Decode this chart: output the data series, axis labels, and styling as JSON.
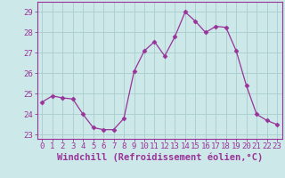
{
  "x": [
    0,
    1,
    2,
    3,
    4,
    5,
    6,
    7,
    8,
    9,
    10,
    11,
    12,
    13,
    14,
    15,
    16,
    17,
    18,
    19,
    20,
    21,
    22,
    23
  ],
  "y": [
    24.6,
    24.9,
    24.8,
    24.75,
    24.0,
    23.35,
    23.25,
    23.25,
    23.8,
    26.1,
    27.1,
    27.55,
    26.85,
    27.8,
    29.0,
    28.55,
    28.0,
    28.3,
    28.25,
    27.1,
    25.4,
    24.0,
    23.7,
    23.5
  ],
  "line_color": "#993399",
  "marker": "D",
  "marker_size": 2.5,
  "bg_color": "#cce8e8",
  "grid_color": "#aacccc",
  "xlabel": "Windchill (Refroidissement éolien,°C)",
  "xlabel_color": "#993399",
  "tick_color": "#993399",
  "ylim": [
    22.8,
    29.5
  ],
  "yticks": [
    23,
    24,
    25,
    26,
    27,
    28,
    29
  ],
  "xticks": [
    0,
    1,
    2,
    3,
    4,
    5,
    6,
    7,
    8,
    9,
    10,
    11,
    12,
    13,
    14,
    15,
    16,
    17,
    18,
    19,
    20,
    21,
    22,
    23
  ],
  "spine_color": "#993399",
  "tick_font_size": 6.5,
  "label_font_size": 7.5
}
